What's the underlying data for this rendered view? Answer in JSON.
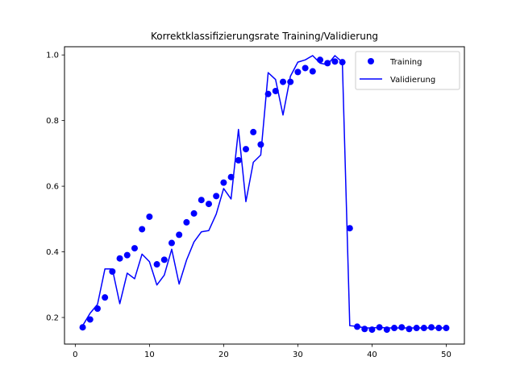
{
  "chart_data": {
    "type": "line",
    "title": "Korrektklassifizierungsrate Training/Validierung",
    "xlabel": "",
    "ylabel": "",
    "xlim": [
      -1.45,
      52.45
    ],
    "ylim": [
      0.119,
      1.025
    ],
    "xticks": [
      0,
      10,
      20,
      30,
      40,
      50
    ],
    "yticks": [
      0.2,
      0.4,
      0.6,
      0.8,
      1.0
    ],
    "grid": false,
    "legend": "top-right",
    "x": [
      1,
      2,
      3,
      4,
      5,
      6,
      7,
      8,
      9,
      10,
      11,
      12,
      13,
      14,
      15,
      16,
      17,
      18,
      19,
      20,
      21,
      22,
      23,
      24,
      25,
      26,
      27,
      28,
      29,
      30,
      31,
      32,
      33,
      34,
      35,
      36,
      37,
      38,
      39,
      40,
      41,
      42,
      43,
      44,
      45,
      46,
      47,
      48,
      49,
      50
    ],
    "series": [
      {
        "name": "Training",
        "style": "markers",
        "color": "#0000ff",
        "values": [
          0.17,
          0.194,
          0.227,
          0.261,
          0.34,
          0.38,
          0.39,
          0.411,
          0.469,
          0.507,
          0.362,
          0.376,
          0.427,
          0.452,
          0.49,
          0.517,
          0.558,
          0.546,
          0.57,
          0.611,
          0.628,
          0.679,
          0.713,
          0.765,
          0.727,
          0.881,
          0.89,
          0.918,
          0.918,
          0.948,
          0.96,
          0.95,
          0.985,
          0.975,
          0.98,
          0.978,
          0.472,
          0.172,
          0.165,
          0.163,
          0.17,
          0.163,
          0.168,
          0.17,
          0.165,
          0.168,
          0.168,
          0.17,
          0.168,
          0.168
        ]
      },
      {
        "name": "Validierung",
        "style": "line",
        "color": "#0000ff",
        "values": [
          0.175,
          0.213,
          0.24,
          0.348,
          0.348,
          0.242,
          0.335,
          0.318,
          0.393,
          0.37,
          0.299,
          0.329,
          0.408,
          0.302,
          0.375,
          0.43,
          0.461,
          0.465,
          0.515,
          0.593,
          0.561,
          0.773,
          0.553,
          0.673,
          0.695,
          0.946,
          0.925,
          0.817,
          0.935,
          0.978,
          0.985,
          0.998,
          0.975,
          0.97,
          0.998,
          0.978,
          0.175,
          0.173,
          0.168,
          0.168,
          0.17,
          0.168,
          0.168,
          0.168,
          0.168,
          0.168,
          0.168,
          0.168,
          0.168,
          0.168
        ]
      }
    ]
  }
}
